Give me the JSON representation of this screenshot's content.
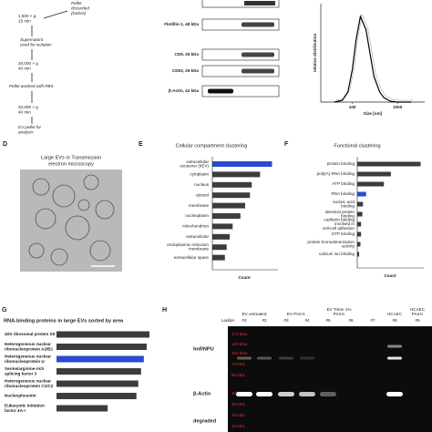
{
  "flowchart": {
    "steps": [
      [
        "1,500 × g",
        "15 min"
      ],
      [
        "Pellet",
        "discarded",
        "(Debris)"
      ],
      [
        "Supernatant",
        "used for isolation"
      ],
      [
        "20,000 × g",
        "40 min"
      ],
      [
        "Pellet washed with PBS"
      ],
      [
        "20,000 × g",
        "40 min"
      ],
      [
        "EV pellet for",
        "analysis"
      ]
    ]
  },
  "blots": {
    "labels": [
      "Flotillin-1, 48 kDa",
      "CD9, 26 kDa",
      "CD63, 25 kDa",
      "β-Actin, 42 kDa"
    ]
  },
  "tem": {
    "panel": "D",
    "title": [
      "Large EVs in Transmission",
      "electron microscopy"
    ]
  },
  "chart_data": [
    {
      "type": "line",
      "xlabel": "Size [nm]",
      "ylabel": "relative distribution",
      "x": [
        40,
        60,
        80,
        100,
        120,
        150,
        200,
        250,
        300,
        400,
        500,
        700,
        1000,
        2000
      ],
      "values": [
        0,
        0.02,
        0.12,
        0.38,
        0.72,
        1.0,
        0.85,
        0.55,
        0.3,
        0.12,
        0.05,
        0.01,
        0,
        0
      ],
      "xlim": [
        20,
        4000
      ],
      "ylim": [
        0,
        1.15
      ],
      "xticks": [
        100,
        1000
      ],
      "log_x": true,
      "color": "#000000"
    },
    {
      "type": "barh",
      "panel": "E",
      "title": "Cellular compartment clustering",
      "xlabel": "Count",
      "categories": [
        [
          "extracellular",
          "exosome (hEV)"
        ],
        [
          "cytoplasm"
        ],
        [
          "nucleus"
        ],
        [
          "cytosol"
        ],
        [
          "membrane"
        ],
        [
          "nucleoplasm"
        ],
        [
          "mitochondrion"
        ],
        [
          "extracellular"
        ],
        [
          "endoplasmic reticulum",
          "membrane"
        ],
        [
          "extracellular space"
        ]
      ],
      "values": [
        100,
        80,
        66,
        63,
        55,
        47,
        34,
        29,
        24,
        21
      ],
      "xlim": [
        0,
        110
      ],
      "colors": [
        "#2a4bd0",
        "#3c3c3c",
        "#3c3c3c",
        "#3c3c3c",
        "#3c3c3c",
        "#3c3c3c",
        "#3c3c3c",
        "#3c3c3c",
        "#3c3c3c",
        "#3c3c3c"
      ]
    },
    {
      "type": "barh",
      "panel": "F",
      "title": "Functional clustering",
      "xlabel": "Count",
      "categories": [
        [
          "protein binding"
        ],
        [
          "poly(A) RNA binding"
        ],
        [
          "ATP binding"
        ],
        [
          "RNA binding"
        ],
        [
          "nucleic acid",
          "binding"
        ],
        [
          "identical protein",
          "binding"
        ],
        [
          "cadherin binding",
          "involved in",
          "cell-cell adhesion"
        ],
        [
          "GTP binding"
        ],
        [
          "protein homodimerization",
          "activity"
        ],
        [
          "calcium ion binding"
        ]
      ],
      "values": [
        100,
        53,
        42,
        14,
        9,
        8,
        6,
        6,
        5,
        3
      ],
      "xlim": [
        0,
        105
      ],
      "colors": [
        "#3c3c3c",
        "#3c3c3c",
        "#3c3c3c",
        "#2a4bd0",
        "#3c3c3c",
        "#3c3c3c",
        "#3c3c3c",
        "#3c3c3c",
        "#3c3c3c",
        "#3c3c3c"
      ]
    },
    {
      "type": "barh",
      "panel": "G",
      "title": "RNA-binding proteins in large EVs sorted by area",
      "categories": [
        [
          "40S ribosomal protein S9"
        ],
        [
          "Heterogeneous nuclear",
          "ribonucleoprotein A2/B1"
        ],
        [
          "Heterogeneous nuclear",
          "ribonucleoprotein U"
        ],
        [
          "Serine/arginine-rich",
          "splicing factor 3"
        ],
        [
          "Heterogeneous nuclear",
          "ribonucleoprotein C1/C2"
        ],
        [
          "Nucleophosmin"
        ],
        [
          "Eukaryotic initiation",
          "factor 4A-I"
        ]
      ],
      "values": [
        100,
        97,
        94,
        91,
        88,
        86,
        55
      ],
      "xlim": [
        0,
        102
      ],
      "colors": [
        "#3c3c3c",
        "#3c3c3c",
        "#2a4bd0",
        "#3c3c3c",
        "#3c3c3c",
        "#3c3c3c",
        "#3c3c3c"
      ]
    }
  ],
  "gel": {
    "panel": "H",
    "groups": [
      [
        "EV untreated"
      ],
      [
        "EV Prot K"
      ],
      [
        "EV Triton 1%",
        "Prot K"
      ],
      [
        "HCAEC"
      ],
      [
        "HCAEC",
        "Prot K"
      ]
    ],
    "lanes": [
      "Ladder",
      "#1",
      "#2",
      "#3",
      "#4",
      "#5",
      "#6",
      "#7",
      "#8",
      "#9"
    ],
    "markers": [
      "170 kDa",
      "130 kDa",
      "100 kDa",
      "70 kDa",
      "55 kDa",
      "40 kDa",
      "35 kDa",
      "25 kDa",
      "15 kDa"
    ],
    "rows": [
      "hnRNPU",
      "β-Actin",
      "degraded"
    ]
  }
}
